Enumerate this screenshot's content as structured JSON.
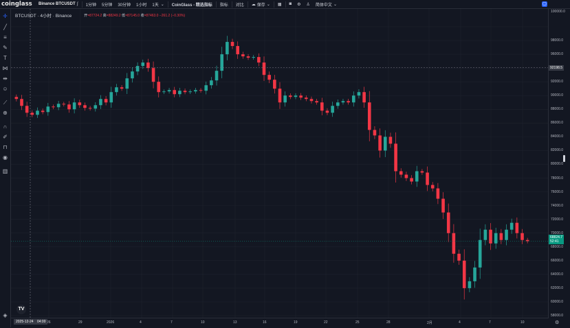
{
  "topbar": {
    "logo": "coinglass",
    "symbol": "Binance BTCUSDT",
    "compare_glyph": "∫",
    "intervals": [
      "1分钟",
      "5分钟",
      "30分钟",
      "1小时",
      "1天"
    ],
    "indicator_brand": "CoinGlass - 精选指标",
    "indicators": "指标",
    "compare": "对比",
    "save": "保存",
    "language": "简体中文"
  },
  "legend": {
    "title": "BTCUSDT · 4小时 · Binance",
    "open_label": "开",
    "open": "=87724.2",
    "high_label": "高",
    "high": "=88249.2",
    "low_label": "低",
    "low": "=87145.0",
    "close_label": "收",
    "close": "=87463.0",
    "change": "−261.2 (−0.30%)"
  },
  "colors": {
    "up": "#26a69a",
    "down": "#f23645",
    "bg": "#131722",
    "grid": "#1e222d"
  },
  "price_axis": {
    "ticks": [
      "98000.0",
      "96000.0",
      "94000.0",
      "92000.0",
      "90000.0",
      "88000.0",
      "86000.0",
      "84000.0",
      "82000.0",
      "80000.0",
      "78000.0",
      "76000.0",
      "74000.0",
      "72000.0",
      "70000.0",
      "68000.0",
      "66000.0",
      "64000.0",
      "62000.0",
      "60000.0",
      "58000.0"
    ],
    "top_tick": "100000.0",
    "crosshair_price": "92198.5",
    "last_price": "68824.7",
    "countdown": "52:41"
  },
  "time_axis": {
    "ticks": [
      "26",
      "29",
      "2026",
      "4",
      "7",
      "10",
      "13",
      "16",
      "19",
      "22",
      "25",
      "28",
      "2月",
      "4",
      "7",
      "10"
    ],
    "crosshair_date": "2025-12-24",
    "crosshair_time": "04:00"
  },
  "chart_data": {
    "type": "candlestick",
    "ylim": [
      58000,
      100000
    ],
    "series": [
      {
        "values": [
          89500,
          88500,
          87500,
          87200,
          87800,
          87600,
          88400,
          88300,
          88800,
          88700,
          88000,
          89000,
          88600,
          88200,
          88100,
          88600,
          89500,
          89000,
          90500,
          91200,
          91000,
          92500,
          93500,
          94300,
          94800,
          94000,
          92000,
          90500,
          90600,
          90800,
          90200,
          90700,
          90500,
          90600,
          90800,
          90700,
          91500,
          92200,
          93600,
          96000,
          97800,
          97200,
          96000,
          95700,
          95500,
          95600,
          94800,
          93000,
          92300,
          91000,
          89000,
          90000,
          89800,
          90000,
          89700,
          89500,
          89200,
          89000,
          87800,
          87500,
          88500,
          89000,
          89200,
          89000,
          90000,
          90500,
          89000,
          85000,
          84200,
          82000,
          84000,
          83000,
          79000,
          78500,
          78000,
          77500,
          79000,
          78800,
          77000,
          76500,
          75000,
          73000,
          70000,
          67000,
          66000,
          62000,
          63000,
          65000,
          69000,
          70500,
          68500,
          70000,
          69000,
          70500,
          71500,
          70000,
          69000,
          68825
        ]
      }
    ]
  }
}
